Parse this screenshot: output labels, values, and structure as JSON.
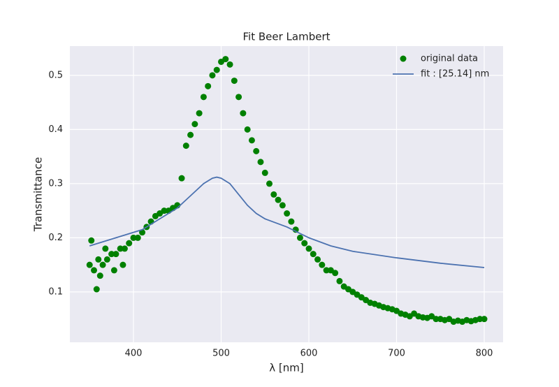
{
  "chart_data": {
    "type": "scatter",
    "title": "Fit Beer Lambert",
    "xlabel": "λ [nm]",
    "ylabel": "Transmittance",
    "xlim": [
      327.5,
      821.5
    ],
    "ylim": [
      0.007,
      0.554
    ],
    "xticks": [
      400,
      500,
      600,
      700,
      800
    ],
    "yticks": [
      0.1,
      0.2,
      0.3,
      0.4,
      0.5
    ],
    "grid": true,
    "legend": "upper right",
    "series": [
      {
        "name": "original data",
        "color": "#008000",
        "mode": "markers",
        "x": [
          350,
          352,
          355,
          358,
          360,
          362,
          365,
          368,
          370,
          375,
          378,
          380,
          385,
          388,
          390,
          395,
          400,
          405,
          410,
          415,
          420,
          425,
          430,
          435,
          440,
          445,
          450,
          455,
          460,
          465,
          470,
          475,
          480,
          485,
          490,
          495,
          500,
          505,
          510,
          515,
          520,
          525,
          530,
          535,
          540,
          545,
          550,
          555,
          560,
          565,
          570,
          575,
          580,
          585,
          590,
          595,
          600,
          605,
          610,
          615,
          620,
          625,
          630,
          635,
          640,
          645,
          650,
          655,
          660,
          665,
          670,
          675,
          680,
          685,
          690,
          695,
          700,
          705,
          710,
          715,
          720,
          725,
          730,
          735,
          740,
          745,
          750,
          755,
          760,
          765,
          770,
          775,
          780,
          785,
          790,
          795,
          800
        ],
        "values": [
          0.15,
          0.195,
          0.14,
          0.105,
          0.16,
          0.13,
          0.15,
          0.18,
          0.16,
          0.17,
          0.14,
          0.17,
          0.18,
          0.15,
          0.18,
          0.19,
          0.2,
          0.2,
          0.21,
          0.22,
          0.23,
          0.24,
          0.245,
          0.25,
          0.25,
          0.255,
          0.26,
          0.31,
          0.37,
          0.39,
          0.41,
          0.43,
          0.46,
          0.48,
          0.5,
          0.51,
          0.525,
          0.53,
          0.52,
          0.49,
          0.46,
          0.43,
          0.4,
          0.38,
          0.36,
          0.34,
          0.32,
          0.3,
          0.28,
          0.27,
          0.26,
          0.245,
          0.23,
          0.215,
          0.2,
          0.19,
          0.18,
          0.17,
          0.16,
          0.15,
          0.14,
          0.14,
          0.135,
          0.12,
          0.11,
          0.105,
          0.1,
          0.095,
          0.09,
          0.085,
          0.08,
          0.078,
          0.075,
          0.072,
          0.07,
          0.068,
          0.065,
          0.06,
          0.058,
          0.055,
          0.06,
          0.055,
          0.053,
          0.052,
          0.055,
          0.05,
          0.05,
          0.048,
          0.05,
          0.045,
          0.047,
          0.045,
          0.048,
          0.046,
          0.048,
          0.05,
          0.05
        ]
      },
      {
        "name": "fit : [25.14] nm",
        "color": "#4c72b0",
        "mode": "line",
        "x": [
          350,
          370,
          390,
          410,
          430,
          450,
          460,
          470,
          480,
          490,
          495,
          500,
          510,
          520,
          530,
          540,
          550,
          575,
          600,
          625,
          650,
          700,
          750,
          800
        ],
        "values": [
          0.185,
          0.195,
          0.205,
          0.215,
          0.235,
          0.255,
          0.27,
          0.285,
          0.3,
          0.31,
          0.312,
          0.31,
          0.3,
          0.28,
          0.26,
          0.245,
          0.235,
          0.22,
          0.2,
          0.185,
          0.175,
          0.163,
          0.153,
          0.145
        ]
      }
    ]
  }
}
